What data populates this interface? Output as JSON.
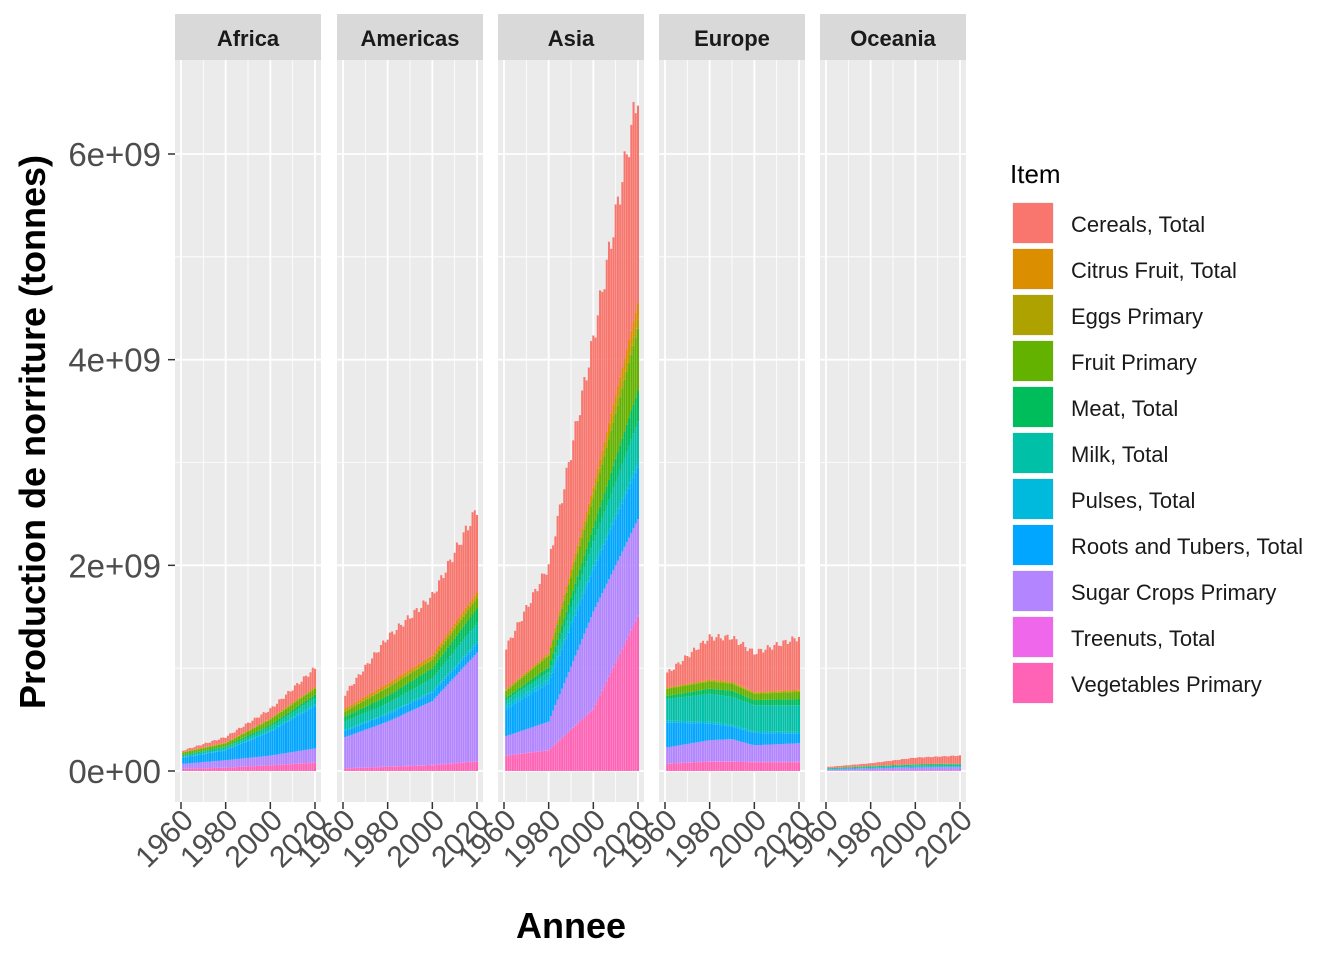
{
  "chart_data": {
    "type": "bar",
    "stacked": true,
    "faceted_by": "Region",
    "xlabel": "Annee",
    "ylabel": "Production de norriture (tonnes)",
    "ylim": [
      0,
      6900000000
    ],
    "xlim": [
      1960,
      2020
    ],
    "y_ticks": [
      0,
      2000000000,
      4000000000,
      6000000000
    ],
    "y_tick_labels": [
      "0e+00",
      "2e+09",
      "4e+09",
      "6e+09"
    ],
    "x_ticks": [
      1960,
      1980,
      2000,
      2020
    ],
    "x_tick_labels": [
      "1960",
      "1980",
      "2000",
      "2020"
    ],
    "grid": true,
    "legend": {
      "title": "Item",
      "position": "right",
      "items": [
        {
          "label": "Cereals, Total",
          "color": "#F8766D"
        },
        {
          "label": "Citrus Fruit, Total",
          "color": "#DB8E00"
        },
        {
          "label": "Eggs Primary",
          "color": "#AEA200"
        },
        {
          "label": "Fruit Primary",
          "color": "#64B200"
        },
        {
          "label": "Meat, Total",
          "color": "#00BD5C"
        },
        {
          "label": "Milk, Total",
          "color": "#00C1A7"
        },
        {
          "label": "Pulses, Total",
          "color": "#00BADE"
        },
        {
          "label": "Roots and Tubers, Total",
          "color": "#00A6FF"
        },
        {
          "label": "Sugar Crops Primary",
          "color": "#B385FF"
        },
        {
          "label": "Treenuts, Total",
          "color": "#EF67EB"
        },
        {
          "label": "Vegetables Primary",
          "color": "#FF63B6"
        }
      ]
    },
    "cumulative_note": "values are cumulative stack tops in tonnes, ordered bottom (Vegetables) to top (Cereals)",
    "facets": [
      {
        "name": "Africa",
        "anchor_years": [
          1961,
          1980,
          2000,
          2020
        ],
        "stack_tops": {
          "Vegetables Primary": [
            20000000,
            32000000,
            55000000,
            80000000
          ],
          "Treenuts, Total": [
            21000000,
            33000000,
            57000000,
            83000000
          ],
          "Sugar Crops Primary": [
            70000000,
            105000000,
            150000000,
            220000000
          ],
          "Roots and Tubers, Total": [
            130000000,
            200000000,
            380000000,
            630000000
          ],
          "Pulses, Total": [
            135000000,
            207000000,
            392000000,
            650000000
          ],
          "Milk, Total": [
            150000000,
            230000000,
            430000000,
            710000000
          ],
          "Meat, Total": [
            157000000,
            240000000,
            448000000,
            740000000
          ],
          "Fruit Primary": [
            180000000,
            270000000,
            500000000,
            800000000
          ],
          "Eggs Primary": [
            182000000,
            273000000,
            505000000,
            808000000
          ],
          "Citrus Fruit, Total": [
            185000000,
            278000000,
            512000000,
            818000000
          ],
          "Cereals, Total": [
            200000000,
            330000000,
            600000000,
            1000000000
          ]
        }
      },
      {
        "name": "Americas",
        "anchor_years": [
          1961,
          1980,
          2000,
          2020
        ],
        "stack_tops": {
          "Vegetables Primary": [
            25000000,
            40000000,
            55000000,
            90000000
          ],
          "Treenuts, Total": [
            27000000,
            43000000,
            60000000,
            97000000
          ],
          "Sugar Crops Primary": [
            330000000,
            480000000,
            680000000,
            1150000000
          ],
          "Roots and Tubers, Total": [
            390000000,
            550000000,
            760000000,
            1230000000
          ],
          "Pulses, Total": [
            400000000,
            565000000,
            778000000,
            1255000000
          ],
          "Milk, Total": [
            480000000,
            660000000,
            900000000,
            1440000000
          ],
          "Meat, Total": [
            530000000,
            730000000,
            1000000000,
            1580000000
          ],
          "Fruit Primary": [
            580000000,
            810000000,
            1080000000,
            1680000000
          ],
          "Eggs Primary": [
            585000000,
            818000000,
            1090000000,
            1697000000
          ],
          "Citrus Fruit, Total": [
            610000000,
            850000000,
            1125000000,
            1740000000
          ],
          "Cereals, Total": [
            750000000,
            1300000000,
            1700000000,
            2550000000
          ]
        }
      },
      {
        "name": "Asia",
        "anchor_years": [
          1961,
          1980,
          2000,
          2020
        ],
        "stack_tops": {
          "Vegetables Primary": [
            150000000,
            200000000,
            600000000,
            1500000000
          ],
          "Treenuts, Total": [
            152000000,
            203000000,
            606000000,
            1510000000
          ],
          "Sugar Crops Primary": [
            340000000,
            480000000,
            1550000000,
            2450000000
          ],
          "Roots and Tubers, Total": [
            600000000,
            850000000,
            1950000000,
            2950000000
          ],
          "Pulses, Total": [
            640000000,
            895000000,
            2000000000,
            3010000000
          ],
          "Milk, Total": [
            690000000,
            960000000,
            2230000000,
            3400000000
          ],
          "Meat, Total": [
            715000000,
            1010000000,
            2370000000,
            3700000000
          ],
          "Fruit Primary": [
            780000000,
            1120000000,
            2650000000,
            4300000000
          ],
          "Eggs Primary": [
            785000000,
            1130000000,
            2700000000,
            4390000000
          ],
          "Citrus Fruit, Total": [
            795000000,
            1150000000,
            2760000000,
            4550000000
          ],
          "Cereals, Total": [
            1200000000,
            2000000000,
            4200000000,
            6600000000
          ]
        }
      },
      {
        "name": "Europe",
        "anchor_years": [
          1961,
          1980,
          1990,
          2000,
          2020
        ],
        "stack_tops": {
          "Vegetables Primary": [
            70000000,
            90000000,
            90000000,
            85000000,
            85000000
          ],
          "Treenuts, Total": [
            73000000,
            94000000,
            94000000,
            89000000,
            90000000
          ],
          "Sugar Crops Primary": [
            230000000,
            300000000,
            310000000,
            250000000,
            270000000
          ],
          "Roots and Tubers, Total": [
            470000000,
            460000000,
            430000000,
            370000000,
            360000000
          ],
          "Pulses, Total": [
            490000000,
            480000000,
            450000000,
            385000000,
            380000000
          ],
          "Milk, Total": [
            700000000,
            750000000,
            720000000,
            640000000,
            640000000
          ],
          "Meat, Total": [
            730000000,
            800000000,
            780000000,
            690000000,
            700000000
          ],
          "Fruit Primary": [
            800000000,
            870000000,
            850000000,
            750000000,
            770000000
          ],
          "Eggs Primary": [
            805000000,
            880000000,
            860000000,
            760000000,
            780000000
          ],
          "Citrus Fruit, Total": [
            812000000,
            890000000,
            870000000,
            768000000,
            790000000
          ],
          "Cereals, Total": [
            950000000,
            1300000000,
            1300000000,
            1150000000,
            1300000000
          ]
        }
      },
      {
        "name": "Oceania",
        "anchor_years": [
          1961,
          1980,
          2000,
          2020
        ],
        "stack_tops": {
          "Vegetables Primary": [
            2000000,
            3000000,
            4000000,
            5000000
          ],
          "Treenuts, Total": [
            2500000,
            3500000,
            5000000,
            6500000
          ],
          "Sugar Crops Primary": [
            12000000,
            25000000,
            35000000,
            38000000
          ],
          "Roots and Tubers, Total": [
            15000000,
            29000000,
            40000000,
            43000000
          ],
          "Pulses, Total": [
            15500000,
            30000000,
            42000000,
            46000000
          ],
          "Milk, Total": [
            23000000,
            40000000,
            56000000,
            60000000
          ],
          "Meat, Total": [
            27000000,
            45000000,
            62000000,
            67000000
          ],
          "Fruit Primary": [
            29000000,
            48000000,
            66000000,
            71000000
          ],
          "Eggs Primary": [
            29300000,
            48400000,
            66600000,
            71800000
          ],
          "Citrus Fruit, Total": [
            30000000,
            49500000,
            67500000,
            73000000
          ],
          "Cereals, Total": [
            40000000,
            75000000,
            130000000,
            150000000
          ]
        }
      }
    ]
  }
}
